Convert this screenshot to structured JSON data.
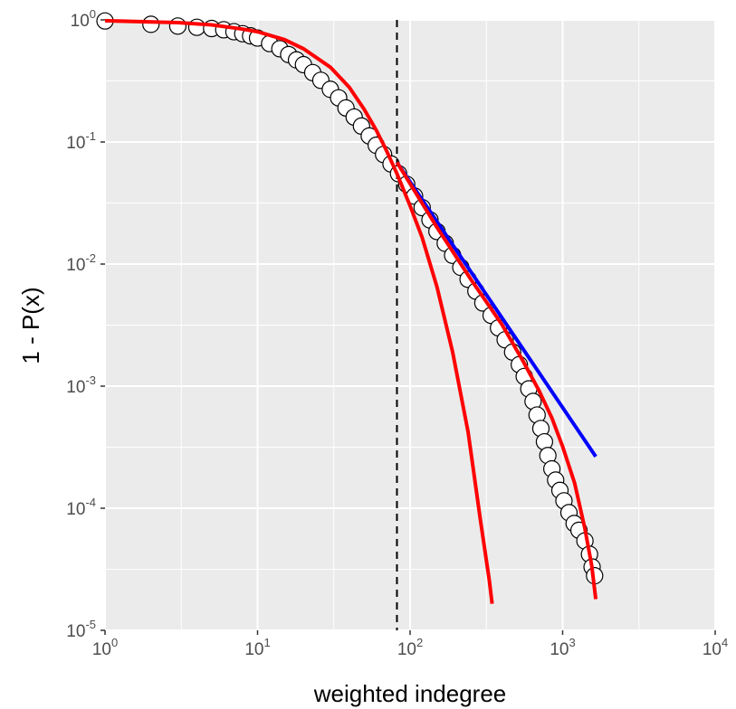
{
  "chart_data": {
    "type": "scatter",
    "xlabel": "weighted indegree",
    "ylabel": "1 - P(x)",
    "x_scale": "log10",
    "y_scale": "log10",
    "xlim": [
      1,
      10000
    ],
    "ylim": [
      1e-05,
      1
    ],
    "x_ticks": [
      {
        "value": 1,
        "base": "10",
        "exp": "0"
      },
      {
        "value": 10,
        "base": "10",
        "exp": "1"
      },
      {
        "value": 100,
        "base": "10",
        "exp": "2"
      },
      {
        "value": 1000,
        "base": "10",
        "exp": "3"
      },
      {
        "value": 10000,
        "base": "10",
        "exp": "4"
      }
    ],
    "y_ticks": [
      {
        "value": 1,
        "base": "10",
        "exp": "0"
      },
      {
        "value": 0.1,
        "base": "10",
        "exp": "-1"
      },
      {
        "value": 0.01,
        "base": "10",
        "exp": "-2"
      },
      {
        "value": 0.001,
        "base": "10",
        "exp": "-3"
      },
      {
        "value": 0.0001,
        "base": "10",
        "exp": "-4"
      },
      {
        "value": 1e-05,
        "base": "10",
        "exp": "-5"
      }
    ],
    "grid": true,
    "legend": "none",
    "colors": {
      "panel": "#ebebeb",
      "grid": "#ffffff",
      "points_stroke": "#000000",
      "points_fill": "#ffffff",
      "fit_powerlaw": "#0000ff",
      "fit_other": "#ff0000",
      "xmin_line": "#000000"
    },
    "points": [
      [
        1,
        0.98
      ],
      [
        2,
        0.92
      ],
      [
        3,
        0.89
      ],
      [
        4,
        0.87
      ],
      [
        5,
        0.85
      ],
      [
        6,
        0.83
      ],
      [
        7,
        0.8
      ],
      [
        8,
        0.77
      ],
      [
        9,
        0.74
      ],
      [
        10,
        0.71
      ],
      [
        12,
        0.64
      ],
      [
        14,
        0.58
      ],
      [
        16,
        0.52
      ],
      [
        18,
        0.47
      ],
      [
        20,
        0.43
      ],
      [
        23,
        0.37
      ],
      [
        26,
        0.32
      ],
      [
        30,
        0.27
      ],
      [
        34,
        0.23
      ],
      [
        38,
        0.19
      ],
      [
        43,
        0.16
      ],
      [
        48,
        0.135
      ],
      [
        54,
        0.112
      ],
      [
        60,
        0.094
      ],
      [
        67,
        0.079
      ],
      [
        75,
        0.066
      ],
      [
        84,
        0.055
      ],
      [
        95,
        0.045
      ],
      [
        107,
        0.036
      ],
      [
        120,
        0.029
      ],
      [
        135,
        0.023
      ],
      [
        150,
        0.0185
      ],
      [
        170,
        0.0148
      ],
      [
        190,
        0.0118
      ],
      [
        215,
        0.0094
      ],
      [
        240,
        0.0075
      ],
      [
        270,
        0.006
      ],
      [
        300,
        0.0048
      ],
      [
        340,
        0.0038
      ],
      [
        380,
        0.003
      ],
      [
        420,
        0.0024
      ],
      [
        470,
        0.0019
      ],
      [
        520,
        0.0015
      ],
      [
        560,
        0.0012
      ],
      [
        600,
        0.00095
      ],
      [
        640,
        0.00075
      ],
      [
        680,
        0.00058
      ],
      [
        720,
        0.00045
      ],
      [
        760,
        0.00035
      ],
      [
        800,
        0.00027
      ],
      [
        850,
        0.00021
      ],
      [
        900,
        0.00017
      ],
      [
        960,
        0.00014
      ],
      [
        1020,
        0.000115
      ],
      [
        1100,
        9.2e-05
      ],
      [
        1190,
        7.5e-05
      ],
      [
        1280,
        6.6e-05
      ],
      [
        1400,
        5.4e-05
      ],
      [
        1500,
        4.2e-05
      ],
      [
        1560,
        3.3e-05
      ],
      [
        1620,
        2.8e-05
      ]
    ],
    "xmin_line": 82,
    "fit_powerlaw": [
      [
        82,
        0.068
      ],
      [
        1650,
        0.000265
      ]
    ],
    "fit_lognormal_full": [
      [
        1,
        0.985
      ],
      [
        3,
        0.95
      ],
      [
        5,
        0.91
      ],
      [
        8,
        0.84
      ],
      [
        10,
        0.8
      ],
      [
        15,
        0.69
      ],
      [
        20,
        0.58
      ],
      [
        30,
        0.41
      ],
      [
        40,
        0.28
      ],
      [
        50,
        0.185
      ],
      [
        60,
        0.125
      ],
      [
        70,
        0.085
      ],
      [
        82,
        0.055
      ],
      [
        100,
        0.03
      ],
      [
        120,
        0.0165
      ],
      [
        150,
        0.0065
      ],
      [
        190,
        0.0019
      ],
      [
        240,
        0.00042
      ],
      [
        290,
        7.8e-05
      ],
      [
        330,
        2.6e-05
      ],
      [
        345,
        1.65e-05
      ]
    ],
    "fit_tail": [
      [
        82,
        0.068
      ],
      [
        150,
        0.02
      ],
      [
        250,
        0.0075
      ],
      [
        400,
        0.0032
      ],
      [
        550,
        0.0016
      ],
      [
        700,
        0.00092
      ],
      [
        850,
        0.00055
      ],
      [
        1000,
        0.00032
      ],
      [
        1200,
        0.00016
      ],
      [
        1400,
        6.8e-05
      ],
      [
        1550,
        3.4e-05
      ],
      [
        1650,
        1.8e-05
      ]
    ]
  }
}
